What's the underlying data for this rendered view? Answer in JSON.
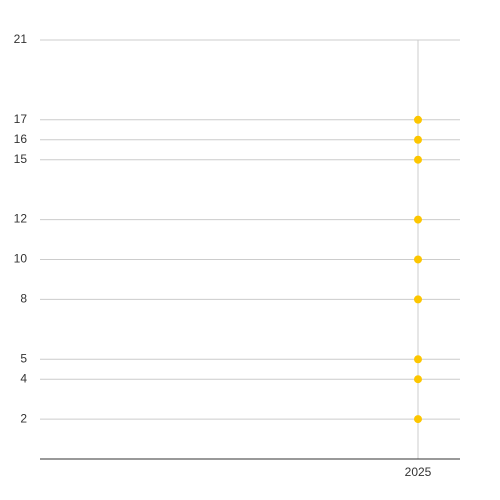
{
  "chart_data": {
    "type": "scatter",
    "x": [
      2025,
      2025,
      2025,
      2025,
      2025,
      2025,
      2025,
      2025,
      2025
    ],
    "values": [
      2,
      4,
      5,
      8,
      10,
      12,
      15,
      16,
      17
    ],
    "color": "#fcc600",
    "xlim": [
      2016,
      2026
    ],
    "xticks": [
      2025
    ],
    "ylim": [
      0,
      21
    ],
    "yticks": [
      2,
      4,
      5,
      8,
      10,
      12,
      15,
      16,
      17,
      21
    ],
    "grid": true
  }
}
